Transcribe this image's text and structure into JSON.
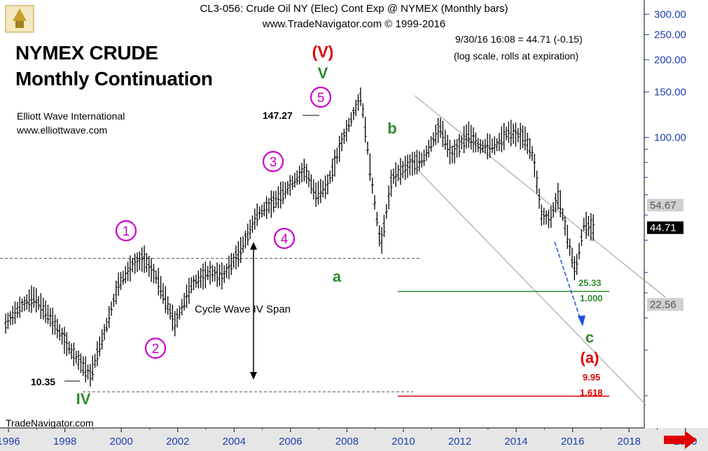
{
  "header": {
    "line1": "CL3-056:  Crude Oil NY (Elec) Cont Exp @ NYMEX  (Monthly bars)",
    "line2": "www.TradeNavigator.com © 1999-2016"
  },
  "title": {
    "line1": "NYMEX CRUDE",
    "line2": "Monthly Continuation"
  },
  "source": {
    "org": "Elliott Wave International",
    "url": "www.elliottwave.com"
  },
  "quote": {
    "line1": "9/30/16 16:08 = 44.71 (-0.15)",
    "line2": "(log scale, rolls at expiration)"
  },
  "footer": "TradeNavigator.com",
  "colors": {
    "magenta": "#cc00cc",
    "green": "#2e8b2e",
    "red": "#e00000",
    "blue": "#1f4fe0",
    "gray": "#888888"
  },
  "chart_data": {
    "type": "line",
    "scale": "log",
    "ylim": [
      7.5,
      330
    ],
    "xlim": [
      1995.7,
      2020.8
    ],
    "x_ticks": [
      "1996",
      "1998",
      "2000",
      "2002",
      "2004",
      "2006",
      "2008",
      "2010",
      "2012",
      "2014",
      "2016",
      "2018",
      "2020"
    ],
    "y_ticks": [
      {
        "value": 300,
        "label": "300.00"
      },
      {
        "value": 250,
        "label": "250.00"
      },
      {
        "value": 200,
        "label": "200.00"
      },
      {
        "value": 150,
        "label": "150.00"
      },
      {
        "value": 100,
        "label": "100.00"
      }
    ],
    "price_tags": [
      {
        "value": 54.67,
        "label": "54.67"
      },
      {
        "value": 44.71,
        "label": "44.71"
      },
      {
        "value": 22.56,
        "label": "22.56"
      }
    ],
    "series": [
      {
        "x": [
          1995.9,
          1996.4,
          1996.9,
          1997.5,
          1998.2,
          1998.9,
          1999.5,
          1999.9,
          2000.4,
          2000.8,
          2001.3,
          2001.9,
          2002.5,
          2003.1,
          2003.6,
          2004.2,
          2004.8,
          2005.3,
          2005.8,
          2006.5,
          2006.9,
          2007.3,
          2007.8,
          2008.5,
          2008.9,
          2009.2,
          2009.6,
          2010.2,
          2010.7,
          2011.3,
          2011.7,
          2012.3,
          2012.7,
          2013.3,
          2013.7,
          2014.3,
          2014.6,
          2014.9,
          2015.2,
          2015.5,
          2015.8,
          2016.1,
          2016.4,
          2016.75
        ],
        "values": [
          19,
          22,
          24,
          20,
          15,
          12,
          19,
          27,
          32,
          34,
          28,
          19,
          27,
          30,
          29,
          36,
          50,
          55,
          62,
          75,
          60,
          65,
          95,
          145,
          65,
          38,
          70,
          78,
          82,
          110,
          85,
          103,
          92,
          93,
          105,
          100,
          85,
          50,
          48,
          60,
          42,
          30,
          46,
          44.7
        ]
      }
    ],
    "labels": {
      "high_price": "147.27",
      "low_price": "10.35",
      "target_price": "25.33",
      "target_ratio": "1.000",
      "lower_target_price": "9.95",
      "lower_target_ratio": "1.618",
      "span_label": "Cycle Wave IV Span",
      "wave_circled": [
        "1",
        "2",
        "3",
        "4",
        "5"
      ],
      "wave_IV": "IV",
      "wave_V_red": "(V)",
      "wave_V_green": "V",
      "wave_a": "a",
      "wave_b": "b",
      "wave_c": "c",
      "wave_a_red": "(a)"
    }
  }
}
